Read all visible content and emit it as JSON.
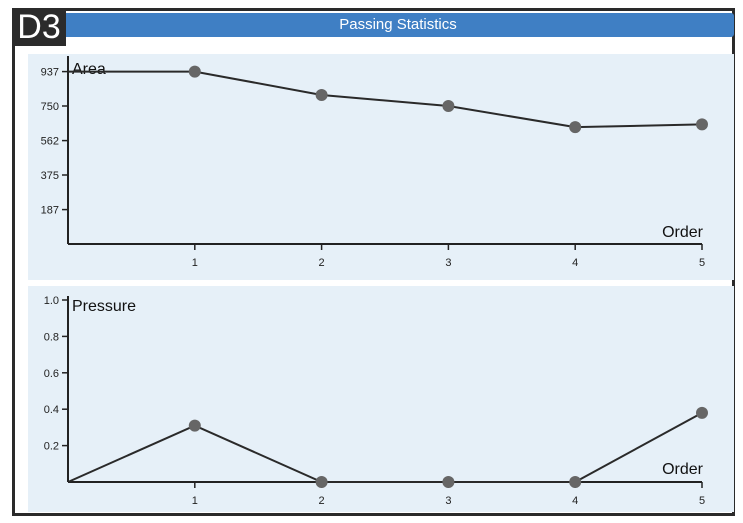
{
  "header": {
    "badge": "D3",
    "title": "Passing Statistics"
  },
  "colors": {
    "title_bar": "#3f7fc4",
    "panel_background": "#e6f0f8",
    "line": "#2a2a2a",
    "point": "#666666"
  },
  "chart_data": [
    {
      "type": "line",
      "xlabel": "Order",
      "ylabel": "Area",
      "x": [
        0,
        1,
        2,
        3,
        4,
        5
      ],
      "values": [
        937,
        937,
        810,
        750,
        635,
        650
      ],
      "x_ticks": [
        "1",
        "2",
        "3",
        "4",
        "5"
      ],
      "y_ticks": [
        "187",
        "375",
        "562",
        "750",
        "937"
      ],
      "xlim": [
        0,
        5
      ],
      "ylim": [
        0,
        1000
      ],
      "grid": false
    },
    {
      "type": "line",
      "xlabel": "Order",
      "ylabel": "Pressure",
      "x": [
        0,
        1,
        2,
        3,
        4,
        5
      ],
      "values": [
        0.0,
        0.31,
        0.0,
        0.0,
        0.0,
        0.38
      ],
      "x_ticks": [
        "1",
        "2",
        "3",
        "4",
        "5"
      ],
      "y_ticks": [
        "0.2",
        "0.4",
        "0.6",
        "0.8",
        "1.0"
      ],
      "xlim": [
        0,
        5
      ],
      "ylim": [
        0,
        1.0
      ],
      "grid": false
    }
  ]
}
